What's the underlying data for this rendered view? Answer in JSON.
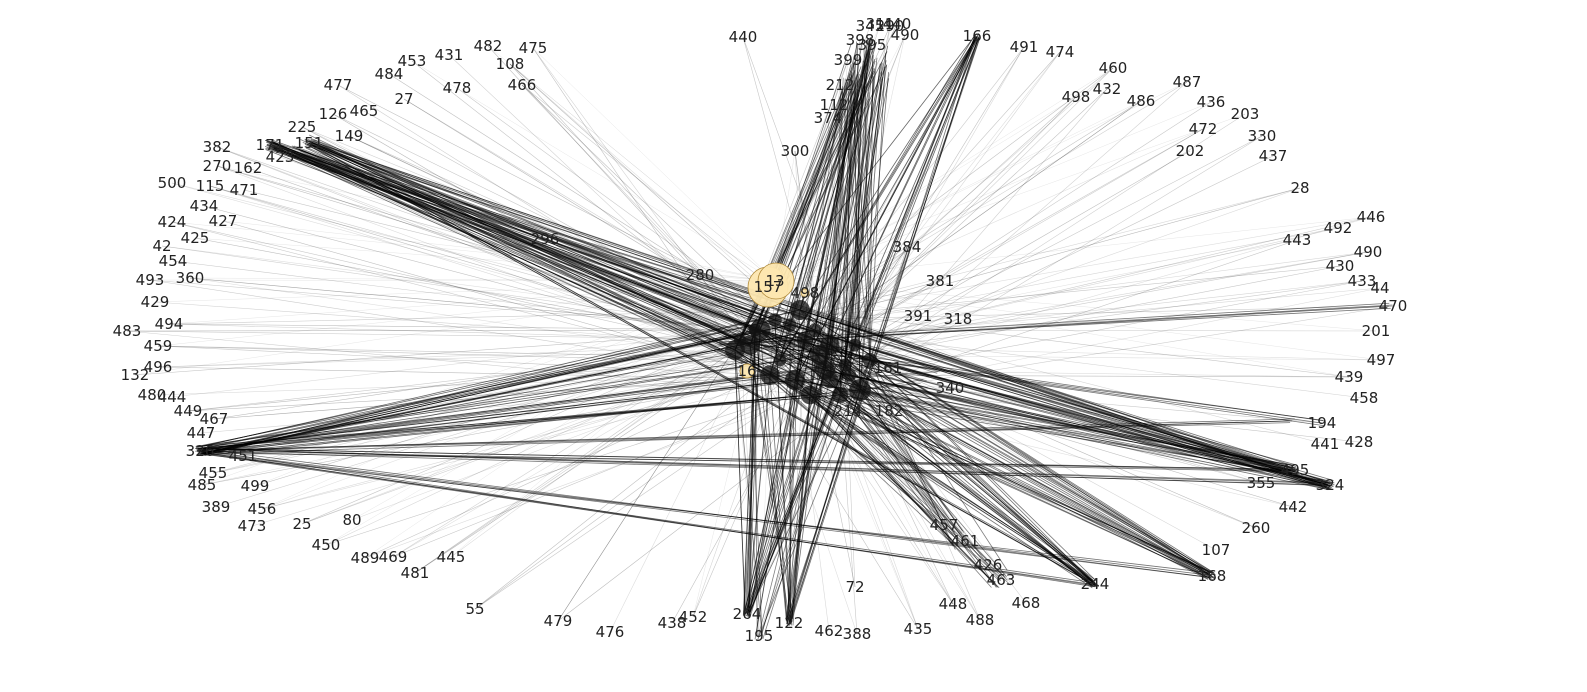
{
  "colors": {
    "edge": "#000000",
    "node_fill": "#fde7b0",
    "node_stroke": "#b08a3a",
    "label": "#222222",
    "background": "#ffffff"
  },
  "hubs": [
    "13",
    "157",
    "280",
    "384",
    "381",
    "214",
    "182",
    "264",
    "195",
    "122",
    "244",
    "168",
    "324",
    "495",
    "326",
    "171",
    "151",
    "166",
    "300"
  ],
  "nodes": [
    {
      "id": "440"
    },
    {
      "id": "166"
    },
    {
      "id": "491"
    },
    {
      "id": "474"
    },
    {
      "id": "460"
    },
    {
      "id": "498"
    },
    {
      "id": "432"
    },
    {
      "id": "486"
    },
    {
      "id": "487"
    },
    {
      "id": "436"
    },
    {
      "id": "203"
    },
    {
      "id": "472"
    },
    {
      "id": "330"
    },
    {
      "id": "202"
    },
    {
      "id": "437"
    },
    {
      "id": "28"
    },
    {
      "id": "446"
    },
    {
      "id": "492"
    },
    {
      "id": "443"
    },
    {
      "id": "490"
    },
    {
      "id": "430"
    },
    {
      "id": "433"
    },
    {
      "id": "44"
    },
    {
      "id": "470"
    },
    {
      "id": "201"
    },
    {
      "id": "497"
    },
    {
      "id": "439"
    },
    {
      "id": "458"
    },
    {
      "id": "194"
    },
    {
      "id": "441"
    },
    {
      "id": "428"
    },
    {
      "id": "495"
    },
    {
      "id": "355"
    },
    {
      "id": "324"
    },
    {
      "id": "442"
    },
    {
      "id": "260"
    },
    {
      "id": "107"
    },
    {
      "id": "168"
    },
    {
      "id": "244"
    },
    {
      "id": "468"
    },
    {
      "id": "488"
    },
    {
      "id": "448"
    },
    {
      "id": "435"
    },
    {
      "id": "388"
    },
    {
      "id": "462"
    },
    {
      "id": "72"
    },
    {
      "id": "122"
    },
    {
      "id": "195"
    },
    {
      "id": "264"
    },
    {
      "id": "452"
    },
    {
      "id": "438"
    },
    {
      "id": "476"
    },
    {
      "id": "479"
    },
    {
      "id": "55"
    },
    {
      "id": "445"
    },
    {
      "id": "481"
    },
    {
      "id": "469"
    },
    {
      "id": "489"
    },
    {
      "id": "450"
    },
    {
      "id": "80"
    },
    {
      "id": "25"
    },
    {
      "id": "473"
    },
    {
      "id": "456"
    },
    {
      "id": "389"
    },
    {
      "id": "499"
    },
    {
      "id": "485"
    },
    {
      "id": "455"
    },
    {
      "id": "451"
    },
    {
      "id": "326"
    },
    {
      "id": "447"
    },
    {
      "id": "467"
    },
    {
      "id": "449"
    },
    {
      "id": "480"
    },
    {
      "id": "444"
    },
    {
      "id": "132"
    },
    {
      "id": "496"
    },
    {
      "id": "459"
    },
    {
      "id": "483"
    },
    {
      "id": "494"
    },
    {
      "id": "429"
    },
    {
      "id": "493"
    },
    {
      "id": "360"
    },
    {
      "id": "454"
    },
    {
      "id": "42"
    },
    {
      "id": "425"
    },
    {
      "id": "424"
    },
    {
      "id": "427"
    },
    {
      "id": "434"
    },
    {
      "id": "500"
    },
    {
      "id": "115"
    },
    {
      "id": "471"
    },
    {
      "id": "270"
    },
    {
      "id": "162"
    },
    {
      "id": "382"
    },
    {
      "id": "171"
    },
    {
      "id": "423"
    },
    {
      "id": "151"
    },
    {
      "id": "225"
    },
    {
      "id": "149"
    },
    {
      "id": "126"
    },
    {
      "id": "465"
    },
    {
      "id": "477"
    },
    {
      "id": "27"
    },
    {
      "id": "484"
    },
    {
      "id": "453"
    },
    {
      "id": "478"
    },
    {
      "id": "431"
    },
    {
      "id": "482"
    },
    {
      "id": "108"
    },
    {
      "id": "475"
    },
    {
      "id": "466"
    },
    {
      "id": "300"
    },
    {
      "id": "384"
    },
    {
      "id": "381"
    },
    {
      "id": "280"
    },
    {
      "id": "13"
    },
    {
      "id": "157"
    },
    {
      "id": "214"
    },
    {
      "id": "182"
    },
    {
      "id": "161"
    },
    {
      "id": "340"
    },
    {
      "id": "318"
    },
    {
      "id": "391"
    },
    {
      "id": "498_b",
      "label": "498"
    },
    {
      "id": "296"
    },
    {
      "id": "457"
    },
    {
      "id": "461"
    },
    {
      "id": "426"
    },
    {
      "id": "463"
    },
    {
      "id": "16"
    },
    {
      "id": "490_b",
      "label": "490"
    },
    {
      "id": "440_b",
      "label": "440"
    },
    {
      "id": "345"
    },
    {
      "id": "398"
    },
    {
      "id": "399"
    },
    {
      "id": "212"
    },
    {
      "id": "112"
    },
    {
      "id": "374"
    },
    {
      "id": "311"
    },
    {
      "id": "290"
    },
    {
      "id": "395"
    }
  ]
}
